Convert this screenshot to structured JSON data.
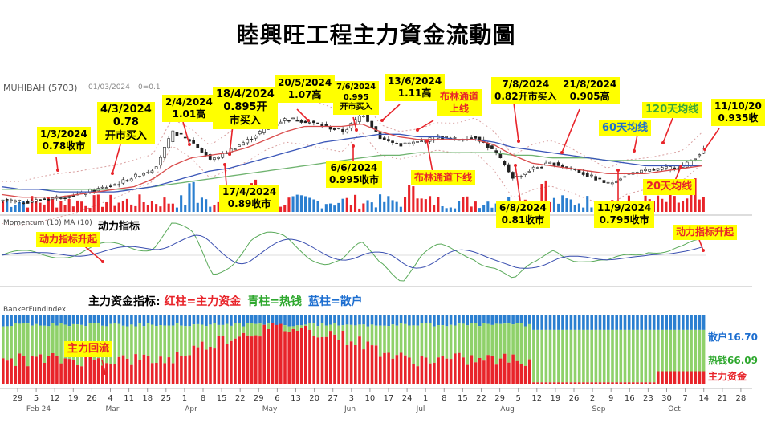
{
  "title": "睦興旺工程主力資金流動圖",
  "header": {
    "ticker": "MUHIBAH (5703)",
    "date": "01/03/2024",
    "extra": "0=0.1"
  },
  "callouts": [
    {
      "id": "c1",
      "text": [
        "1/3/2024",
        "0.78收市"
      ]
    },
    {
      "id": "c2",
      "text": [
        "4/3/2024",
        "0.78",
        "开市买入"
      ]
    },
    {
      "id": "c3",
      "text": [
        "2/4/2024",
        "1.01高"
      ]
    },
    {
      "id": "c4",
      "text": [
        "18/4/2024",
        "0.895开",
        "市买入"
      ]
    },
    {
      "id": "c5",
      "text": [
        "17/4/2024",
        "0.89收市"
      ]
    },
    {
      "id": "c6",
      "text": [
        "20/5/2024",
        "1.07高"
      ]
    },
    {
      "id": "c7",
      "text": [
        "7/6/2024",
        "0.995",
        "开市买入"
      ]
    },
    {
      "id": "c8",
      "text": [
        "13/6/2024",
        "1.11高"
      ]
    },
    {
      "id": "c9",
      "text": [
        "6/6/2024",
        "0.995收市"
      ]
    },
    {
      "id": "c10",
      "text": [
        "7/8/2024",
        "0.82开市买入"
      ]
    },
    {
      "id": "c11",
      "text": [
        "21/8/2024",
        "0.905高"
      ]
    },
    {
      "id": "c12",
      "text": [
        "6/8/2024",
        "0.81收市"
      ]
    },
    {
      "id": "c13",
      "text": [
        "11/9/2024",
        "0.795收市"
      ]
    },
    {
      "id": "c14",
      "text": [
        "11/10/20",
        "0.935收"
      ]
    },
    {
      "id": "c15",
      "text": [
        "布林通道",
        "上线"
      ]
    },
    {
      "id": "c16",
      "text": [
        "布林通道下线"
      ]
    },
    {
      "id": "c17",
      "text": [
        "120天均线"
      ]
    },
    {
      "id": "c18",
      "text": [
        "60天均线"
      ]
    },
    {
      "id": "c19",
      "text": [
        "20天均线"
      ]
    },
    {
      "id": "c20",
      "text": [
        "动力指标升起"
      ]
    },
    {
      "id": "c21",
      "text": [
        "动力指标升起"
      ]
    },
    {
      "id": "c22",
      "text": [
        "主力回流"
      ]
    }
  ],
  "momentum_panel": {
    "label": "Momentum (10)  MA (10)",
    "title": "动力指标"
  },
  "banker_panel": {
    "label": "BankerFundIndex",
    "legend_prefix": "主力资金指标: ",
    "legend_red": "红柱=主力资金",
    "legend_green": "青柱=热钱",
    "legend_blue": "蓝柱=散户",
    "right_blue": "散户16.70",
    "right_green": "热钱66.09",
    "right_red": "主力资金"
  },
  "colors": {
    "red": "#e8242a",
    "green": "#8fd16a",
    "blue": "#2b7fd0",
    "ma20": "#d94a4a",
    "ma60": "#3a56b8",
    "ma120": "#6fb36f",
    "callout": "#ffff00"
  },
  "chart_data": [
    {
      "type": "line",
      "name": "price",
      "x_ticks": [
        "29",
        "5",
        "12",
        "19",
        "26",
        "4",
        "11",
        "18",
        "25",
        "1",
        "8",
        "15",
        "22",
        "29",
        "6",
        "13",
        "20",
        "27",
        "3",
        "10",
        "17",
        "24",
        "1",
        "8",
        "15",
        "22",
        "29",
        "5",
        "12",
        "19",
        "26",
        "2",
        "9",
        "16",
        "23",
        "30",
        "7",
        "14",
        "21",
        "28"
      ],
      "month_labels": [
        "Feb 24",
        "Mar",
        "Apr",
        "May",
        "Jun",
        "Jul",
        "Aug",
        "Sep",
        "Oct"
      ],
      "close": [
        0.74,
        0.73,
        0.74,
        0.75,
        0.76,
        0.78,
        0.8,
        0.83,
        0.86,
        1.0,
        0.96,
        0.89,
        0.93,
        0.97,
        1.02,
        1.05,
        1.04,
        1.02,
        1.0,
        1.07,
        0.97,
        0.95,
        0.96,
        0.98,
        0.97,
        0.98,
        0.92,
        0.82,
        0.86,
        0.88,
        0.86,
        0.83,
        0.8,
        0.84,
        0.85,
        0.86,
        0.87,
        0.93
      ],
      "series_points": {
        "ma20": [
          0.76,
          0.75,
          0.75,
          0.75,
          0.76,
          0.77,
          0.78,
          0.79,
          0.82,
          0.87,
          0.9,
          0.91,
          0.92,
          0.94,
          0.97,
          1.0,
          1.02,
          1.02,
          1.02,
          1.03,
          1.0,
          0.98,
          0.97,
          0.97,
          0.97,
          0.97,
          0.95,
          0.91,
          0.88,
          0.87,
          0.86,
          0.85,
          0.84,
          0.84,
          0.84,
          0.85,
          0.86,
          0.87
        ],
        "ma60": [
          0.79,
          0.78,
          0.78,
          0.77,
          0.77,
          0.77,
          0.77,
          0.78,
          0.79,
          0.81,
          0.83,
          0.85,
          0.86,
          0.88,
          0.9,
          0.92,
          0.94,
          0.96,
          0.97,
          0.98,
          0.99,
          0.99,
          0.98,
          0.98,
          0.97,
          0.97,
          0.96,
          0.94,
          0.93,
          0.92,
          0.91,
          0.9,
          0.89,
          0.88,
          0.87,
          0.87,
          0.87,
          0.87
        ],
        "ma120": [
          0.78,
          0.78,
          0.78,
          0.78,
          0.78,
          0.78,
          0.78,
          0.78,
          0.79,
          0.8,
          0.81,
          0.82,
          0.83,
          0.84,
          0.85,
          0.86,
          0.87,
          0.88,
          0.89,
          0.9,
          0.91,
          0.91,
          0.92,
          0.92,
          0.92,
          0.92,
          0.92,
          0.91,
          0.91,
          0.9,
          0.9,
          0.9,
          0.89,
          0.89,
          0.89,
          0.89,
          0.89,
          0.89
        ]
      }
    }
  ]
}
